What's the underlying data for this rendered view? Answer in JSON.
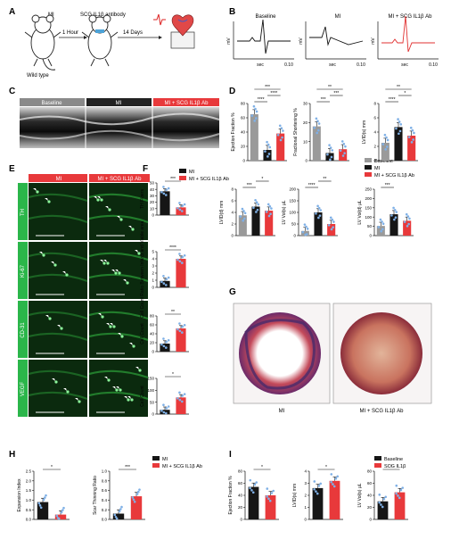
{
  "panel_letters": [
    "A",
    "B",
    "C",
    "D",
    "E",
    "F",
    "G",
    "H",
    "I"
  ],
  "panelA": {
    "mi": "MI",
    "antibody": "SCG IL1β antibody",
    "t1": "1 Hour",
    "t2": "14 Days",
    "wt": "Wild type"
  },
  "panelB": {
    "titles": [
      "Baseline",
      "MI",
      "MI + SCG IL1β Ab"
    ],
    "ylabel": "mV",
    "xlabel": "sec",
    "xtick": "0.10"
  },
  "panelC": {
    "labels": [
      "Baseline",
      "MI",
      "MI + SCG IL1β Ab"
    ]
  },
  "panelE": {
    "headers": [
      "MI",
      "MI + SCG IL1β Ab"
    ],
    "rows": [
      "TH",
      "Ki-67",
      "CD-31",
      "VEGF"
    ]
  },
  "legend3": [
    "Baseline",
    "MI",
    "MI + SCG IL1β Ab"
  ],
  "legend2": [
    "MI",
    "MI + SCG IL1β Ab"
  ],
  "legendI": [
    "Baseline",
    "SCG IL1β"
  ],
  "panelG": {
    "labels": [
      "MI",
      "MI + SCG IL1β Ab"
    ]
  },
  "colors": {
    "baseline": "#9a9a9a",
    "mi": "#161616",
    "treated": "#e8393b",
    "dot": "#7fb0e6",
    "fluor": "#3ad04a"
  },
  "chart_data": [
    {
      "id": "D1",
      "type": "bar",
      "ylabel": "Ejection Fraction %",
      "categories": [
        "Baseline",
        "MI",
        "MI + SCG IL1β Ab"
      ],
      "values": [
        65,
        15,
        38
      ],
      "ylim": [
        0,
        80
      ],
      "yticks": [
        "0",
        "20",
        "40",
        "60",
        "80"
      ],
      "sig": [
        "****",
        "****",
        "***"
      ]
    },
    {
      "id": "D2",
      "type": "bar",
      "ylabel": "Fractional Shortening %",
      "categories": [
        "Baseline",
        "MI",
        "MI + SCG IL1β Ab"
      ],
      "values": [
        18,
        4,
        6
      ],
      "ylim": [
        0,
        30
      ],
      "yticks": [
        "0",
        "10",
        "20",
        "30"
      ],
      "sig": [
        "***",
        "***",
        "**"
      ]
    },
    {
      "id": "D3",
      "type": "bar",
      "ylabel": "LVID(s) mm",
      "categories": [
        "Baseline",
        "MI",
        "MI + SCG IL1β Ab"
      ],
      "values": [
        2.5,
        4.7,
        3.5
      ],
      "ylim": [
        0,
        8
      ],
      "yticks": [
        "0",
        "2",
        "4",
        "6",
        "8"
      ],
      "sig": [
        "****",
        "*",
        "**"
      ]
    },
    {
      "id": "E1",
      "type": "bar",
      "ylabel": "TH Fibers",
      "categories": [
        "MI",
        "MI + SCG IL1β Ab"
      ],
      "values": [
        37,
        12
      ],
      "ylim": [
        0,
        50
      ],
      "yticks": [
        "0",
        "10",
        "20",
        "30",
        "40",
        "50"
      ],
      "sig": [
        "***"
      ]
    },
    {
      "id": "E2",
      "type": "bar",
      "ylabel": "Cell Count Ratio Between Infarct and Viable area",
      "categories": [
        "MI",
        "MI + SCG IL1β Ab"
      ],
      "values": [
        0.9,
        4.0
      ],
      "ylim": [
        0,
        5
      ],
      "yticks": [
        "0",
        "1",
        "2",
        "3",
        "4",
        "5"
      ],
      "sig": [
        "****"
      ]
    },
    {
      "id": "E3",
      "type": "bar",
      "ylabel": "Cell Count",
      "categories": [
        "MI",
        "MI + SCG IL1β Ab"
      ],
      "values": [
        18,
        52
      ],
      "ylim": [
        0,
        80
      ],
      "yticks": [
        "0",
        "20",
        "40",
        "60",
        "80"
      ],
      "sig": [
        "**"
      ]
    },
    {
      "id": "E4",
      "type": "bar",
      "ylabel": "Cell Count",
      "categories": [
        "MI",
        "MI + SCG IL1β Ab"
      ],
      "values": [
        18,
        70
      ],
      "ylim": [
        0,
        150
      ],
      "yticks": [
        "0",
        "50",
        "100",
        "150"
      ],
      "sig": [
        "*"
      ]
    },
    {
      "id": "F1",
      "type": "bar",
      "ylabel": "LVID(d) mm",
      "categories": [
        "Baseline",
        "MI",
        "MI + SCG IL1β Ab"
      ],
      "values": [
        3.5,
        5.0,
        4.3
      ],
      "ylim": [
        0,
        8
      ],
      "yticks": [
        "0",
        "2",
        "4",
        "6",
        "8"
      ],
      "sig": [
        "***",
        "*"
      ]
    },
    {
      "id": "F2",
      "type": "bar",
      "ylabel": "LV Vol(s) µL",
      "categories": [
        "Baseline",
        "MI",
        "MI + SCG IL1β Ab"
      ],
      "values": [
        20,
        100,
        50
      ],
      "ylim": [
        0,
        200
      ],
      "yticks": [
        "0",
        "50",
        "100",
        "150",
        "200"
      ],
      "sig": [
        "****",
        "**"
      ]
    },
    {
      "id": "F3",
      "type": "bar",
      "ylabel": "LV Vol(d) µL",
      "categories": [
        "Baseline",
        "MI",
        "MI + SCG IL1β Ab"
      ],
      "values": [
        52,
        115,
        80
      ],
      "ylim": [
        0,
        250
      ],
      "yticks": [
        "0",
        "50",
        "100",
        "150",
        "200",
        "250"
      ],
      "sig": [
        "***"
      ]
    },
    {
      "id": "H1",
      "type": "bar",
      "ylabel": "Expansion Index",
      "categories": [
        "MI",
        "MI + SCG IL1β Ab"
      ],
      "values": [
        0.9,
        0.25
      ],
      "ylim": [
        0,
        2.5
      ],
      "yticks": [
        "0.0",
        "0.5",
        "1.0",
        "1.5",
        "2.0",
        "2.5"
      ],
      "sig": [
        "*"
      ]
    },
    {
      "id": "H2",
      "type": "bar",
      "ylabel": "Scar Thinning Ratio",
      "categories": [
        "MI",
        "MI + SCG IL1β Ab"
      ],
      "values": [
        0.12,
        0.48
      ],
      "ylim": [
        0,
        1.0
      ],
      "yticks": [
        "0.0",
        "0.2",
        "0.4",
        "0.6",
        "0.8",
        "1.0"
      ],
      "sig": [
        "***"
      ]
    },
    {
      "id": "I1",
      "type": "bar",
      "ylabel": "Ejection Fraction %",
      "categories": [
        "Baseline",
        "SCG IL1β"
      ],
      "values": [
        54,
        40
      ],
      "ylim": [
        0,
        80
      ],
      "yticks": [
        "0",
        "20",
        "40",
        "60",
        "80"
      ],
      "sig": [
        "*"
      ]
    },
    {
      "id": "I2",
      "type": "bar",
      "ylabel": "LVID(s) mm",
      "categories": [
        "Baseline",
        "SCG IL1β"
      ],
      "values": [
        2.6,
        3.2
      ],
      "ylim": [
        0,
        4
      ],
      "yticks": [
        "0",
        "1",
        "2",
        "3",
        "4"
      ],
      "sig": [
        "*"
      ]
    },
    {
      "id": "I3",
      "type": "bar",
      "ylabel": "LV Vol(s) µL",
      "categories": [
        "Baseline",
        "SCG IL1β"
      ],
      "values": [
        30,
        45
      ],
      "ylim": [
        0,
        80
      ],
      "yticks": [
        "0",
        "20",
        "40",
        "60",
        "80"
      ],
      "sig": [
        "*"
      ]
    }
  ]
}
